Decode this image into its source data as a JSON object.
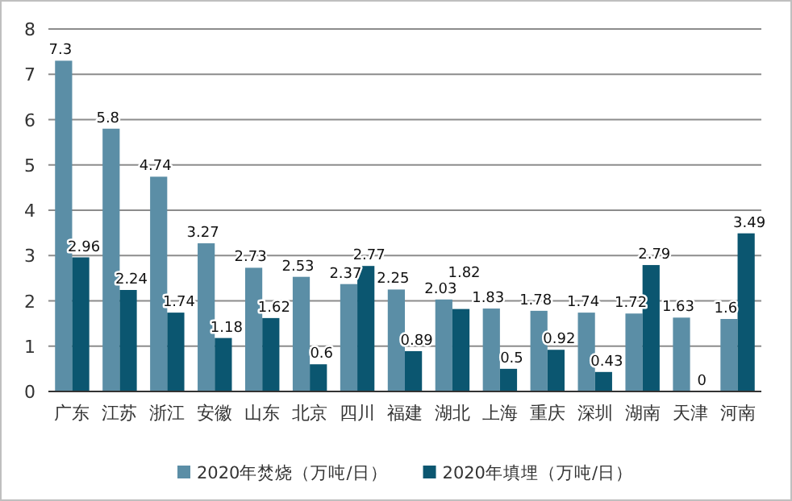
{
  "chart_data": {
    "type": "bar",
    "categories": [
      "广东",
      "江苏",
      "浙江",
      "安徽",
      "山东",
      "北京",
      "四川",
      "福建",
      "湖北",
      "上海",
      "重庆",
      "深圳",
      "湖南",
      "天津",
      "河南"
    ],
    "series": [
      {
        "name": "2020年焚烧（万吨/日）",
        "color": "#5b8ea6",
        "values": [
          7.3,
          5.8,
          4.74,
          3.27,
          2.73,
          2.53,
          2.37,
          2.25,
          2.03,
          1.83,
          1.78,
          1.74,
          1.72,
          1.63,
          1.6
        ]
      },
      {
        "name": "2020年填埋（万吨/日）",
        "color": "#0b5670",
        "values": [
          2.96,
          2.24,
          1.74,
          1.18,
          1.62,
          0.6,
          2.77,
          0.89,
          1.82,
          0.5,
          0.92,
          0.43,
          2.79,
          0,
          3.49
        ]
      }
    ],
    "ylim": [
      0,
      8
    ],
    "yticks": [
      0,
      1,
      2,
      3,
      4,
      5,
      6,
      7,
      8
    ],
    "grid": "y",
    "legend": "bottom",
    "data_labels": true
  }
}
